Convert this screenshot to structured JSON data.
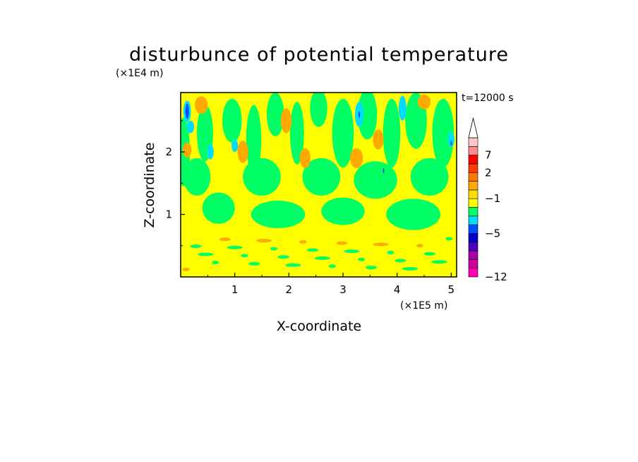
{
  "chart_data": {
    "type": "heatmap",
    "title": "disturbunce of potential temperature",
    "xlabel": "X-coordinate",
    "ylabel": "Z-coordinate",
    "x_unit": "(×1E5 m)",
    "y_unit": "(×1E4 m)",
    "time_label": "t=12000 s",
    "xlim": [
      0,
      5.1
    ],
    "ylim": [
      0,
      2.95
    ],
    "x_ticks": [
      1,
      2,
      3,
      4,
      5
    ],
    "y_ticks": [
      1,
      2
    ],
    "colorbar": {
      "levels": [
        -12,
        -5,
        -1,
        2,
        7
      ],
      "labels": [
        "−12",
        "−5",
        "−1",
        "2",
        "7"
      ],
      "colors": [
        "#ff00b4",
        "#d2009b",
        "#aa00aa",
        "#4b00be",
        "#0000c8",
        "#0050ff",
        "#00dcff",
        "#00ff64",
        "#ffff00",
        "#ffdc00",
        "#ffaa00",
        "#ff7800",
        "#ff3c00",
        "#ff0000",
        "#ff8c8c",
        "#ffc8c8"
      ],
      "extend": "max"
    },
    "colors": {
      "near_zero_negative": "#00ff64",
      "near_zero_positive": "#ffff00",
      "weak_positive": "#ffaa00",
      "weak_negative": "#00dcff",
      "strong_negative": "#0050ff"
    }
  }
}
